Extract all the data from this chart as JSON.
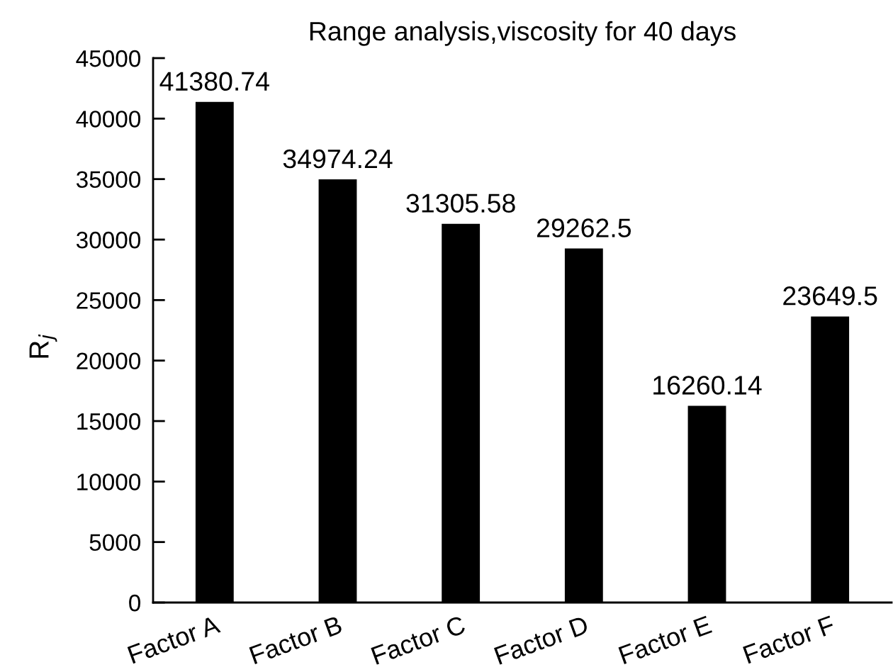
{
  "chart_data": {
    "type": "bar",
    "title": "Range analysis,viscosity for 40 days",
    "ylabel": "R$_{j}$",
    "categories": [
      "Factor A",
      "Factor B",
      "Factor C",
      "Factor D",
      "Factor E",
      "Factor F"
    ],
    "values": [
      41380.74,
      34974.24,
      31305.58,
      29262.5,
      16260.14,
      23649.5
    ],
    "color": "#000000",
    "ylim": [
      0,
      45000
    ],
    "yticks": [
      0,
      5000,
      10000,
      15000,
      20000,
      25000,
      30000,
      35000,
      40000,
      45000
    ],
    "data_labels": true
  }
}
